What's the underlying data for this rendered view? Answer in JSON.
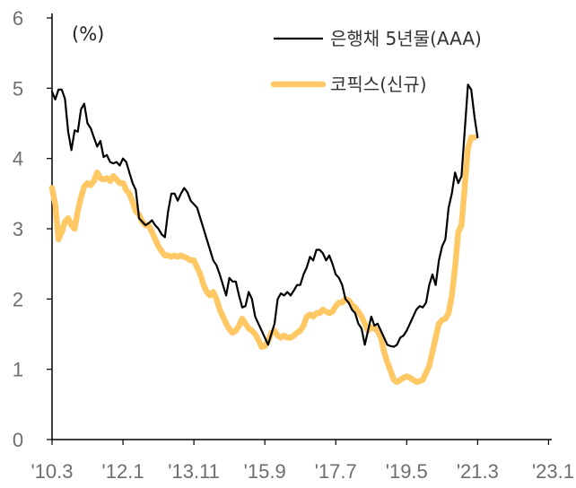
{
  "chart_data": {
    "type": "line",
    "title": "",
    "unit_label": "(%)",
    "ylabel": "",
    "xlabel": "",
    "ylim": [
      0,
      6
    ],
    "y_ticks": [
      "0",
      "1",
      "2",
      "3",
      "4",
      "5",
      "6"
    ],
    "x_ticks": [
      "'10.3",
      "'12.1",
      "'13.11",
      "'15.9",
      "'17.7",
      "'19.5",
      "'21.3",
      "'23.1"
    ],
    "x_range": [
      0,
      155
    ],
    "x_tick_positions": [
      0,
      22,
      44,
      66,
      88,
      110,
      132,
      154
    ],
    "legend_position": "top-right",
    "series": [
      {
        "name": "은행채 5년물(AAA)",
        "color": "#000000",
        "points": [
          [
            0,
            4.95
          ],
          [
            1,
            4.84
          ],
          [
            2,
            4.98
          ],
          [
            3,
            4.98
          ],
          [
            4,
            4.85
          ],
          [
            5,
            4.38
          ],
          [
            6,
            4.12
          ],
          [
            7,
            4.4
          ],
          [
            8,
            4.38
          ],
          [
            9,
            4.7
          ],
          [
            10,
            4.78
          ],
          [
            11,
            4.5
          ],
          [
            12,
            4.43
          ],
          [
            13,
            4.3
          ],
          [
            14,
            4.17
          ],
          [
            15,
            4.25
          ],
          [
            16,
            4.02
          ],
          [
            17,
            4.05
          ],
          [
            18,
            3.95
          ],
          [
            19,
            3.93
          ],
          [
            20,
            3.95
          ],
          [
            21,
            3.9
          ],
          [
            22,
            4.0
          ],
          [
            23,
            3.95
          ],
          [
            24,
            3.8
          ],
          [
            25,
            3.65
          ],
          [
            26,
            3.55
          ],
          [
            27,
            3.15
          ],
          [
            28,
            3.1
          ],
          [
            29,
            3.05
          ],
          [
            30,
            3.08
          ],
          [
            31,
            3.12
          ],
          [
            32,
            3.05
          ],
          [
            33,
            3.0
          ],
          [
            34,
            2.92
          ],
          [
            35,
            2.88
          ],
          [
            36,
            3.25
          ],
          [
            37,
            3.5
          ],
          [
            38,
            3.5
          ],
          [
            39,
            3.4
          ],
          [
            40,
            3.5
          ],
          [
            41,
            3.58
          ],
          [
            42,
            3.52
          ],
          [
            43,
            3.4
          ],
          [
            44,
            3.35
          ],
          [
            45,
            3.3
          ],
          [
            46,
            3.15
          ],
          [
            47,
            3.0
          ],
          [
            48,
            2.85
          ],
          [
            49,
            2.7
          ],
          [
            50,
            2.55
          ],
          [
            51,
            2.48
          ],
          [
            52,
            2.35
          ],
          [
            53,
            2.2
          ],
          [
            54,
            2.05
          ],
          [
            55,
            2.3
          ],
          [
            56,
            2.25
          ],
          [
            57,
            2.25
          ],
          [
            58,
            2.05
          ],
          [
            59,
            1.88
          ],
          [
            60,
            1.9
          ],
          [
            61,
            2.1
          ],
          [
            62,
            2.0
          ],
          [
            63,
            1.75
          ],
          [
            64,
            1.65
          ],
          [
            65,
            1.55
          ],
          [
            66,
            1.45
          ],
          [
            67,
            1.35
          ],
          [
            68,
            1.5
          ],
          [
            69,
            1.65
          ],
          [
            70,
            2.0
          ],
          [
            71,
            2.08
          ],
          [
            72,
            2.05
          ],
          [
            73,
            2.1
          ],
          [
            74,
            2.05
          ],
          [
            75,
            2.12
          ],
          [
            76,
            2.2
          ],
          [
            77,
            2.2
          ],
          [
            78,
            2.35
          ],
          [
            79,
            2.45
          ],
          [
            80,
            2.6
          ],
          [
            81,
            2.55
          ],
          [
            82,
            2.7
          ],
          [
            83,
            2.7
          ],
          [
            84,
            2.65
          ],
          [
            85,
            2.55
          ],
          [
            86,
            2.62
          ],
          [
            87,
            2.5
          ],
          [
            88,
            2.35
          ],
          [
            89,
            2.3
          ],
          [
            90,
            2.2
          ],
          [
            91,
            2.0
          ],
          [
            92,
            1.95
          ],
          [
            93,
            1.85
          ],
          [
            94,
            1.8
          ],
          [
            95,
            1.65
          ],
          [
            96,
            1.58
          ],
          [
            97,
            1.35
          ],
          [
            98,
            1.55
          ],
          [
            99,
            1.75
          ],
          [
            100,
            1.62
          ],
          [
            101,
            1.65
          ],
          [
            102,
            1.55
          ],
          [
            103,
            1.45
          ],
          [
            104,
            1.35
          ],
          [
            105,
            1.33
          ],
          [
            106,
            1.32
          ],
          [
            107,
            1.35
          ],
          [
            108,
            1.45
          ],
          [
            109,
            1.48
          ],
          [
            110,
            1.55
          ],
          [
            111,
            1.65
          ],
          [
            112,
            1.75
          ],
          [
            113,
            1.85
          ],
          [
            114,
            1.9
          ],
          [
            115,
            1.88
          ],
          [
            116,
            1.95
          ],
          [
            117,
            2.2
          ],
          [
            118,
            2.35
          ],
          [
            119,
            2.2
          ],
          [
            120,
            2.55
          ],
          [
            121,
            2.75
          ],
          [
            122,
            2.85
          ],
          [
            123,
            3.3
          ],
          [
            124,
            3.5
          ],
          [
            125,
            3.8
          ],
          [
            126,
            3.65
          ],
          [
            127,
            3.75
          ],
          [
            128,
            4.4
          ],
          [
            129,
            5.05
          ],
          [
            130,
            4.98
          ],
          [
            131,
            4.6
          ],
          [
            132,
            4.3
          ]
        ]
      },
      {
        "name": "코픽스(신규)",
        "color": "#FFC864",
        "points": [
          [
            0,
            3.58
          ],
          [
            1,
            3.35
          ],
          [
            2,
            2.85
          ],
          [
            3,
            2.95
          ],
          [
            4,
            3.1
          ],
          [
            5,
            3.15
          ],
          [
            6,
            3.05
          ],
          [
            7,
            3.0
          ],
          [
            8,
            3.25
          ],
          [
            9,
            3.45
          ],
          [
            10,
            3.6
          ],
          [
            11,
            3.65
          ],
          [
            12,
            3.62
          ],
          [
            13,
            3.68
          ],
          [
            14,
            3.8
          ],
          [
            15,
            3.72
          ],
          [
            16,
            3.7
          ],
          [
            17,
            3.72
          ],
          [
            18,
            3.68
          ],
          [
            19,
            3.75
          ],
          [
            20,
            3.7
          ],
          [
            21,
            3.65
          ],
          [
            22,
            3.65
          ],
          [
            23,
            3.55
          ],
          [
            24,
            3.5
          ],
          [
            25,
            3.38
          ],
          [
            26,
            3.25
          ],
          [
            27,
            3.2
          ],
          [
            28,
            3.1
          ],
          [
            29,
            3.05
          ],
          [
            30,
            3.05
          ],
          [
            31,
            2.95
          ],
          [
            32,
            2.85
          ],
          [
            33,
            2.75
          ],
          [
            34,
            2.68
          ],
          [
            35,
            2.62
          ],
          [
            36,
            2.62
          ],
          [
            37,
            2.6
          ],
          [
            38,
            2.62
          ],
          [
            39,
            2.6
          ],
          [
            40,
            2.62
          ],
          [
            41,
            2.6
          ],
          [
            42,
            2.58
          ],
          [
            43,
            2.55
          ],
          [
            44,
            2.55
          ],
          [
            45,
            2.45
          ],
          [
            46,
            2.35
          ],
          [
            47,
            2.2
          ],
          [
            48,
            2.1
          ],
          [
            49,
            2.05
          ],
          [
            50,
            2.1
          ],
          [
            51,
            2.0
          ],
          [
            52,
            1.85
          ],
          [
            53,
            1.75
          ],
          [
            54,
            1.65
          ],
          [
            55,
            1.57
          ],
          [
            56,
            1.52
          ],
          [
            57,
            1.55
          ],
          [
            58,
            1.62
          ],
          [
            59,
            1.72
          ],
          [
            60,
            1.65
          ],
          [
            61,
            1.58
          ],
          [
            62,
            1.55
          ],
          [
            63,
            1.5
          ],
          [
            64,
            1.42
          ],
          [
            65,
            1.32
          ],
          [
            66,
            1.33
          ],
          [
            67,
            1.4
          ],
          [
            68,
            1.52
          ],
          [
            69,
            1.55
          ],
          [
            70,
            1.48
          ],
          [
            71,
            1.45
          ],
          [
            72,
            1.48
          ],
          [
            73,
            1.45
          ],
          [
            74,
            1.45
          ],
          [
            75,
            1.48
          ],
          [
            76,
            1.52
          ],
          [
            77,
            1.55
          ],
          [
            78,
            1.62
          ],
          [
            79,
            1.75
          ],
          [
            80,
            1.78
          ],
          [
            81,
            1.75
          ],
          [
            82,
            1.8
          ],
          [
            83,
            1.8
          ],
          [
            84,
            1.85
          ],
          [
            85,
            1.82
          ],
          [
            86,
            1.8
          ],
          [
            87,
            1.82
          ],
          [
            88,
            1.9
          ],
          [
            89,
            1.95
          ],
          [
            90,
            1.95
          ],
          [
            91,
            2.0
          ],
          [
            92,
            1.98
          ],
          [
            93,
            1.92
          ],
          [
            94,
            1.88
          ],
          [
            95,
            1.82
          ],
          [
            96,
            1.75
          ],
          [
            97,
            1.65
          ],
          [
            98,
            1.55
          ],
          [
            99,
            1.6
          ],
          [
            100,
            1.58
          ],
          [
            101,
            1.55
          ],
          [
            102,
            1.45
          ],
          [
            103,
            1.25
          ],
          [
            104,
            1.1
          ],
          [
            105,
            0.98
          ],
          [
            106,
            0.85
          ],
          [
            107,
            0.82
          ],
          [
            108,
            0.85
          ],
          [
            109,
            0.88
          ],
          [
            110,
            0.9
          ],
          [
            111,
            0.88
          ],
          [
            112,
            0.85
          ],
          [
            113,
            0.82
          ],
          [
            114,
            0.83
          ],
          [
            115,
            0.85
          ],
          [
            116,
            0.95
          ],
          [
            117,
            1.05
          ],
          [
            118,
            1.25
          ],
          [
            119,
            1.45
          ],
          [
            120,
            1.65
          ],
          [
            121,
            1.7
          ],
          [
            122,
            1.72
          ],
          [
            123,
            1.8
          ],
          [
            124,
            2.05
          ],
          [
            125,
            2.45
          ],
          [
            126,
            2.95
          ],
          [
            127,
            3.05
          ],
          [
            128,
            3.6
          ],
          [
            129,
            4.15
          ],
          [
            130,
            4.3
          ],
          [
            131,
            4.3
          ]
        ]
      }
    ]
  }
}
